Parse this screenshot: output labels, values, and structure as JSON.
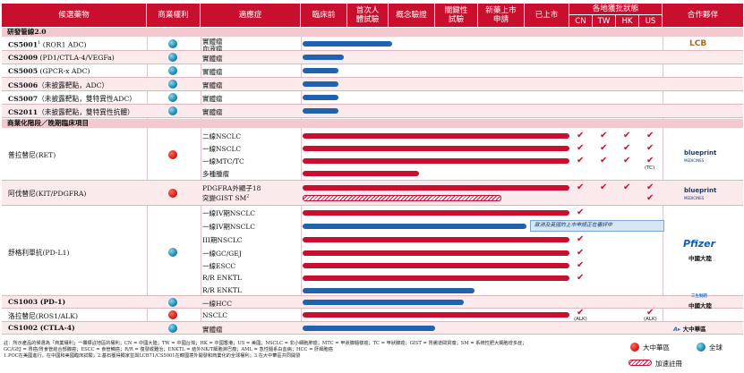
{
  "header": {
    "candidate": "候選藥物",
    "rights": "商業權利",
    "indication": "適應症",
    "preclinical": "臨床前",
    "first_in_human": "首次人體試驗",
    "poc": "概念驗證",
    "pivotal": "關鍵性試驗",
    "nda": "新藥上市申請",
    "marketed": "已上市",
    "approvals": "各地獲批狀態",
    "regions": [
      "CN",
      "TW",
      "HK",
      "US"
    ],
    "partner": "合作夥伴"
  },
  "sections": {
    "rd": "研發管線2.0",
    "commercial": "商業化階段／晚期臨床項目"
  },
  "rd_rows": [
    {
      "name_bold": "CS5001",
      "sup": "1",
      "name_rest": " (ROR1 ADC)",
      "ind": [
        "實體瘤",
        "血液瘤"
      ]
    },
    {
      "name_bold": "CS2009",
      "sup": "",
      "name_rest": " (PD1/CTLA-4/VEGFa)",
      "ind": [
        "實體瘤"
      ]
    },
    {
      "name_bold": "CS5005",
      "sup": "",
      "name_rest": " (GPCR-x ADC)",
      "ind": [
        "實體瘤"
      ]
    },
    {
      "name_bold": "CS5006",
      "sup": "",
      "name_rest": "（未披露靶點，ADC）",
      "ind": [
        "實體瘤"
      ]
    },
    {
      "name_bold": "CS5007",
      "sup": "",
      "name_rest": "（未披露靶點，雙特異性ADC）",
      "ind": [
        "實體瘤"
      ]
    },
    {
      "name_bold": "CS2011",
      "sup": "",
      "name_rest": "（未披露靶點，雙特異性抗體）",
      "ind": [
        "實體瘤"
      ]
    }
  ],
  "commercial_rows": {
    "pralsetinib": {
      "name": "普拉替尼(RET)",
      "ind": [
        "二線NSCLC",
        "一線NSCLC",
        "一線MTC/TC",
        "多種腫瘤"
      ]
    },
    "avapritinib": {
      "name": "阿伐替尼(KIT/PDGFRA)",
      "ind": [
        "PDGFRA外顯子18",
        "突變GIST SM",
        "2"
      ]
    },
    "sugemalimab": {
      "name": "舒格利單抗(PD-L1)",
      "ind": [
        "一線IV期NSCLC",
        "一線IV期NSCLC",
        "III期NSCLC",
        "一線GC/GEJ",
        "一線ESCC",
        "R/R ENKTL",
        "R/R ENKTL"
      ]
    },
    "cs1003": {
      "name": "CS1003 (PD-1)",
      "ind": [
        "一線HCC"
      ]
    },
    "lorlatinib": {
      "name": "洛拉替尼(ROS1/ALK)",
      "ind": [
        "NSCLC"
      ]
    },
    "cs1002": {
      "name": "CS1002 (CTLA-4)",
      "ind": [
        "實體瘤"
      ]
    }
  },
  "callout": "歐洲及英國的上市申請正在審評中",
  "approval_notes": {
    "tc": "(TC)",
    "alk": "(ALK)"
  },
  "partners": {
    "lcb": "LCB",
    "blueprint": "blueprint",
    "blueprint_sub": "MEDICINES",
    "pfizer": "Pfizer",
    "pfizer_sub": "中國大陸",
    "hengrui": "中國大陸",
    "hengrui_top": "三生制药",
    "lasted": "大中華區"
  },
  "legend": {
    "greater_china": "大中華區",
    "global": "全球",
    "accelerated": "加速註冊"
  },
  "footnotes": {
    "line1": "註：所示產品的候選為「商業權利」一欄標註地區的權利；CN = 中國大陸；TW = 中國台灣；HK = 中國香港；US = 美國；NSCLC = 非小細胞肺癌；MTC = 甲狀腺髓樣癌；TC = 甲狀腺癌；GIST = 胃腸道間質瘤；SM = 系統性肥大細胞增多症；",
    "line2": "GC/GEJ = 胃癌/胃食管結合部腺癌；ESCC = 食管鱗癌；R/R = 復發或難治；ENKTL = 結外NK/T細胞淋巴瘤；AML = 急性髓系白血病；HCC = 肝細胞癌",
    "line3": "1.POC在美國進行，在中國和美國臨床試驗；2.基石獲得獨家並與LCB71/CS5001在韓國境外開發和商業化的全球權利；3.在大中華區共同開發"
  },
  "colors": {
    "brand": "#c8102e",
    "bar_blue": "#1f63b0"
  }
}
